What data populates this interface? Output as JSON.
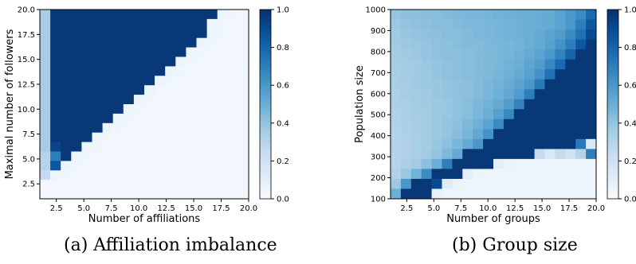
{
  "captions": {
    "a": "(a) Affiliation imbalance",
    "b": "(b) Group size"
  },
  "chart_data": [
    {
      "type": "heatmap",
      "panel": "a",
      "title": "",
      "xlabel": "Number of affiliations",
      "ylabel": "Maximal number of followers",
      "xlim": [
        1,
        20
      ],
      "ylim": [
        1,
        20
      ],
      "xticks": [
        "2.5",
        "5.0",
        "7.5",
        "10.0",
        "12.5",
        "15.0",
        "17.5",
        "20.0"
      ],
      "yticks": [
        "2.5",
        "5.0",
        "7.5",
        "10.0",
        "12.5",
        "15.0",
        "17.5",
        "20.0"
      ],
      "x": [
        1,
        20
      ],
      "y": [
        1,
        20
      ],
      "x_values": [
        1,
        2,
        3,
        4,
        5,
        6,
        7,
        8,
        9,
        10,
        11,
        12,
        13,
        14,
        15,
        16,
        17,
        18,
        19,
        20
      ],
      "y_values": [
        1,
        2,
        3,
        4,
        5,
        6,
        7,
        8,
        9,
        10,
        11,
        12,
        13,
        14,
        15,
        16,
        17,
        18,
        19,
        20
      ],
      "colormap": "Blues",
      "colorbar": {
        "min": 0,
        "max": 1,
        "ticks": [
          "0.0",
          "0.2",
          "0.4",
          "0.6",
          "0.8",
          "1.0"
        ]
      },
      "values_rows_top_to_bottom": [
        [
          0.35,
          0.97,
          0.97,
          0.97,
          0.97,
          0.97,
          0.97,
          0.97,
          0.97,
          0.97,
          0.97,
          0.97,
          0.97,
          0.97,
          0.97,
          0.97,
          0.97,
          0.05,
          0.04,
          0.03
        ],
        [
          0.35,
          0.97,
          0.97,
          0.97,
          0.97,
          0.97,
          0.97,
          0.97,
          0.97,
          0.97,
          0.97,
          0.97,
          0.97,
          0.97,
          0.97,
          0.97,
          0.05,
          0.04,
          0.03,
          0.03
        ],
        [
          0.35,
          0.97,
          0.97,
          0.97,
          0.97,
          0.97,
          0.97,
          0.97,
          0.97,
          0.97,
          0.97,
          0.97,
          0.97,
          0.97,
          0.97,
          0.97,
          0.05,
          0.04,
          0.03,
          0.03
        ],
        [
          0.35,
          0.97,
          0.97,
          0.97,
          0.97,
          0.97,
          0.97,
          0.97,
          0.97,
          0.97,
          0.97,
          0.97,
          0.97,
          0.97,
          0.97,
          0.05,
          0.04,
          0.03,
          0.03,
          0.03
        ],
        [
          0.35,
          0.97,
          0.97,
          0.97,
          0.97,
          0.97,
          0.97,
          0.97,
          0.97,
          0.97,
          0.97,
          0.97,
          0.97,
          0.97,
          0.05,
          0.04,
          0.03,
          0.03,
          0.03,
          0.03
        ],
        [
          0.35,
          0.97,
          0.97,
          0.97,
          0.97,
          0.97,
          0.97,
          0.97,
          0.97,
          0.97,
          0.97,
          0.97,
          0.97,
          0.05,
          0.04,
          0.03,
          0.03,
          0.03,
          0.03,
          0.03
        ],
        [
          0.35,
          0.97,
          0.97,
          0.97,
          0.97,
          0.97,
          0.97,
          0.97,
          0.97,
          0.97,
          0.97,
          0.97,
          0.05,
          0.04,
          0.03,
          0.03,
          0.03,
          0.03,
          0.03,
          0.03
        ],
        [
          0.35,
          0.97,
          0.97,
          0.97,
          0.97,
          0.97,
          0.97,
          0.97,
          0.97,
          0.97,
          0.97,
          0.05,
          0.04,
          0.03,
          0.03,
          0.03,
          0.03,
          0.03,
          0.03,
          0.03
        ],
        [
          0.35,
          0.97,
          0.97,
          0.97,
          0.97,
          0.97,
          0.97,
          0.97,
          0.97,
          0.97,
          0.05,
          0.04,
          0.03,
          0.03,
          0.03,
          0.03,
          0.03,
          0.03,
          0.03,
          0.03
        ],
        [
          0.35,
          0.97,
          0.97,
          0.97,
          0.97,
          0.97,
          0.97,
          0.97,
          0.97,
          0.05,
          0.04,
          0.03,
          0.03,
          0.03,
          0.03,
          0.03,
          0.03,
          0.03,
          0.03,
          0.03
        ],
        [
          0.35,
          0.97,
          0.97,
          0.97,
          0.97,
          0.97,
          0.97,
          0.97,
          0.05,
          0.04,
          0.03,
          0.03,
          0.03,
          0.03,
          0.03,
          0.03,
          0.03,
          0.03,
          0.03,
          0.03
        ],
        [
          0.35,
          0.97,
          0.97,
          0.97,
          0.97,
          0.97,
          0.97,
          0.05,
          0.04,
          0.03,
          0.03,
          0.03,
          0.03,
          0.03,
          0.03,
          0.03,
          0.03,
          0.03,
          0.03,
          0.03
        ],
        [
          0.35,
          0.97,
          0.97,
          0.97,
          0.97,
          0.97,
          0.05,
          0.04,
          0.03,
          0.03,
          0.03,
          0.03,
          0.03,
          0.03,
          0.03,
          0.03,
          0.03,
          0.03,
          0.03,
          0.03
        ],
        [
          0.35,
          0.97,
          0.97,
          0.97,
          0.97,
          0.05,
          0.04,
          0.03,
          0.03,
          0.03,
          0.03,
          0.03,
          0.03,
          0.03,
          0.03,
          0.03,
          0.03,
          0.03,
          0.03,
          0.03
        ],
        [
          0.35,
          0.92,
          0.97,
          0.97,
          0.05,
          0.04,
          0.03,
          0.03,
          0.03,
          0.03,
          0.03,
          0.03,
          0.03,
          0.03,
          0.03,
          0.03,
          0.03,
          0.03,
          0.03,
          0.03
        ],
        [
          0.3,
          0.7,
          0.97,
          0.05,
          0.04,
          0.03,
          0.03,
          0.03,
          0.03,
          0.03,
          0.03,
          0.03,
          0.03,
          0.03,
          0.03,
          0.03,
          0.03,
          0.03,
          0.03,
          0.03
        ],
        [
          0.3,
          0.85,
          0.06,
          0.04,
          0.03,
          0.03,
          0.03,
          0.03,
          0.03,
          0.03,
          0.03,
          0.03,
          0.03,
          0.03,
          0.03,
          0.03,
          0.03,
          0.03,
          0.03,
          0.03
        ],
        [
          0.25,
          0.05,
          0.04,
          0.03,
          0.03,
          0.03,
          0.03,
          0.03,
          0.03,
          0.03,
          0.03,
          0.03,
          0.03,
          0.03,
          0.03,
          0.03,
          0.03,
          0.03,
          0.03,
          0.03
        ],
        [
          0.03,
          0.03,
          0.03,
          0.03,
          0.03,
          0.03,
          0.03,
          0.03,
          0.03,
          0.03,
          0.03,
          0.03,
          0.03,
          0.03,
          0.03,
          0.03,
          0.03,
          0.03,
          0.03,
          0.03
        ],
        [
          0.03,
          0.03,
          0.03,
          0.03,
          0.03,
          0.03,
          0.03,
          0.03,
          0.03,
          0.03,
          0.03,
          0.03,
          0.03,
          0.03,
          0.03,
          0.03,
          0.03,
          0.03,
          0.03,
          0.03
        ]
      ]
    },
    {
      "type": "heatmap",
      "panel": "b",
      "title": "",
      "xlabel": "Number of groups",
      "ylabel": "Population size",
      "xlim": [
        1,
        20
      ],
      "ylim": [
        100,
        1000
      ],
      "xticks": [
        "2.5",
        "5.0",
        "7.5",
        "10.0",
        "12.5",
        "15.0",
        "17.5",
        "20.0"
      ],
      "yticks": [
        "100",
        "200",
        "300",
        "400",
        "500",
        "600",
        "700",
        "800",
        "900",
        "1000"
      ],
      "x_values": [
        1,
        2,
        3,
        4,
        5,
        6,
        7,
        8,
        9,
        10,
        11,
        12,
        13,
        14,
        15,
        16,
        17,
        18,
        19,
        20
      ],
      "y_values": [
        1000,
        950,
        900,
        850,
        800,
        750,
        700,
        650,
        600,
        550,
        500,
        450,
        400,
        350,
        300,
        250,
        200,
        150,
        100
      ],
      "colormap": "Blues",
      "colorbar": {
        "min": 0,
        "max": 1,
        "ticks": [
          "0.0",
          "0.2",
          "0.4",
          "0.6",
          "0.8",
          "1.0"
        ]
      },
      "values_rows_top_to_bottom": [
        [
          0.4,
          0.42,
          0.42,
          0.43,
          0.43,
          0.44,
          0.45,
          0.46,
          0.46,
          0.47,
          0.48,
          0.49,
          0.5,
          0.5,
          0.51,
          0.52,
          0.55,
          0.6,
          0.65,
          0.78
        ],
        [
          0.38,
          0.4,
          0.41,
          0.42,
          0.43,
          0.43,
          0.44,
          0.45,
          0.45,
          0.46,
          0.47,
          0.48,
          0.49,
          0.5,
          0.51,
          0.52,
          0.55,
          0.6,
          0.7,
          0.85
        ],
        [
          0.37,
          0.39,
          0.4,
          0.41,
          0.42,
          0.43,
          0.43,
          0.44,
          0.45,
          0.46,
          0.47,
          0.48,
          0.49,
          0.5,
          0.52,
          0.55,
          0.58,
          0.65,
          0.75,
          0.9
        ],
        [
          0.36,
          0.38,
          0.39,
          0.4,
          0.41,
          0.42,
          0.43,
          0.44,
          0.44,
          0.45,
          0.46,
          0.47,
          0.48,
          0.5,
          0.52,
          0.56,
          0.62,
          0.7,
          0.85,
          0.97
        ],
        [
          0.35,
          0.37,
          0.38,
          0.4,
          0.41,
          0.42,
          0.42,
          0.43,
          0.44,
          0.45,
          0.46,
          0.47,
          0.49,
          0.52,
          0.55,
          0.6,
          0.68,
          0.8,
          0.97,
          0.97
        ],
        [
          0.35,
          0.36,
          0.37,
          0.39,
          0.4,
          0.41,
          0.42,
          0.43,
          0.44,
          0.45,
          0.46,
          0.48,
          0.5,
          0.54,
          0.58,
          0.66,
          0.78,
          0.97,
          0.97,
          0.97
        ],
        [
          0.34,
          0.36,
          0.37,
          0.38,
          0.4,
          0.41,
          0.42,
          0.43,
          0.44,
          0.45,
          0.47,
          0.49,
          0.52,
          0.56,
          0.62,
          0.75,
          0.97,
          0.97,
          0.97,
          0.97
        ],
        [
          0.34,
          0.35,
          0.37,
          0.38,
          0.39,
          0.4,
          0.41,
          0.42,
          0.44,
          0.46,
          0.48,
          0.51,
          0.55,
          0.6,
          0.72,
          0.97,
          0.97,
          0.97,
          0.97,
          0.97
        ],
        [
          0.33,
          0.35,
          0.36,
          0.37,
          0.39,
          0.4,
          0.41,
          0.42,
          0.44,
          0.46,
          0.49,
          0.53,
          0.58,
          0.7,
          0.97,
          0.97,
          0.97,
          0.97,
          0.97,
          0.97
        ],
        [
          0.33,
          0.34,
          0.36,
          0.37,
          0.38,
          0.39,
          0.41,
          0.43,
          0.45,
          0.48,
          0.52,
          0.57,
          0.68,
          0.97,
          0.97,
          0.97,
          0.97,
          0.97,
          0.97,
          0.97
        ],
        [
          0.32,
          0.34,
          0.35,
          0.36,
          0.38,
          0.39,
          0.41,
          0.43,
          0.46,
          0.5,
          0.56,
          0.66,
          0.97,
          0.97,
          0.97,
          0.97,
          0.97,
          0.97,
          0.97,
          0.97
        ],
        [
          0.32,
          0.33,
          0.35,
          0.36,
          0.38,
          0.4,
          0.42,
          0.45,
          0.49,
          0.55,
          0.65,
          0.97,
          0.97,
          0.97,
          0.97,
          0.97,
          0.97,
          0.97,
          0.97,
          0.97
        ],
        [
          0.31,
          0.33,
          0.34,
          0.36,
          0.38,
          0.4,
          0.43,
          0.47,
          0.53,
          0.62,
          0.97,
          0.97,
          0.97,
          0.97,
          0.97,
          0.97,
          0.97,
          0.97,
          0.97,
          0.97
        ],
        [
          0.31,
          0.32,
          0.34,
          0.36,
          0.39,
          0.42,
          0.46,
          0.52,
          0.6,
          0.97,
          0.97,
          0.97,
          0.97,
          0.97,
          0.97,
          0.97,
          0.97,
          0.97,
          0.72,
          0.15
        ],
        [
          0.3,
          0.32,
          0.34,
          0.37,
          0.4,
          0.45,
          0.52,
          0.97,
          0.97,
          0.97,
          0.97,
          0.97,
          0.97,
          0.97,
          0.25,
          0.15,
          0.25,
          0.2,
          0.3,
          0.7
        ],
        [
          0.3,
          0.33,
          0.36,
          0.42,
          0.5,
          0.7,
          0.97,
          0.97,
          0.97,
          0.97,
          0.1,
          0.06,
          0.05,
          0.05,
          0.05,
          0.05,
          0.05,
          0.05,
          0.05,
          0.05
        ],
        [
          0.32,
          0.38,
          0.48,
          0.65,
          0.97,
          0.97,
          0.97,
          0.1,
          0.06,
          0.05,
          0.05,
          0.05,
          0.05,
          0.05,
          0.05,
          0.05,
          0.05,
          0.05,
          0.05,
          0.05
        ],
        [
          0.38,
          0.6,
          0.97,
          0.97,
          0.9,
          0.12,
          0.06,
          0.05,
          0.05,
          0.05,
          0.05,
          0.05,
          0.05,
          0.05,
          0.05,
          0.05,
          0.05,
          0.05,
          0.05,
          0.05
        ],
        [
          0.5,
          0.97,
          0.97,
          0.97,
          0.08,
          0.05,
          0.05,
          0.05,
          0.05,
          0.05,
          0.05,
          0.05,
          0.05,
          0.05,
          0.05,
          0.05,
          0.05,
          0.05,
          0.05,
          0.05
        ]
      ]
    }
  ]
}
